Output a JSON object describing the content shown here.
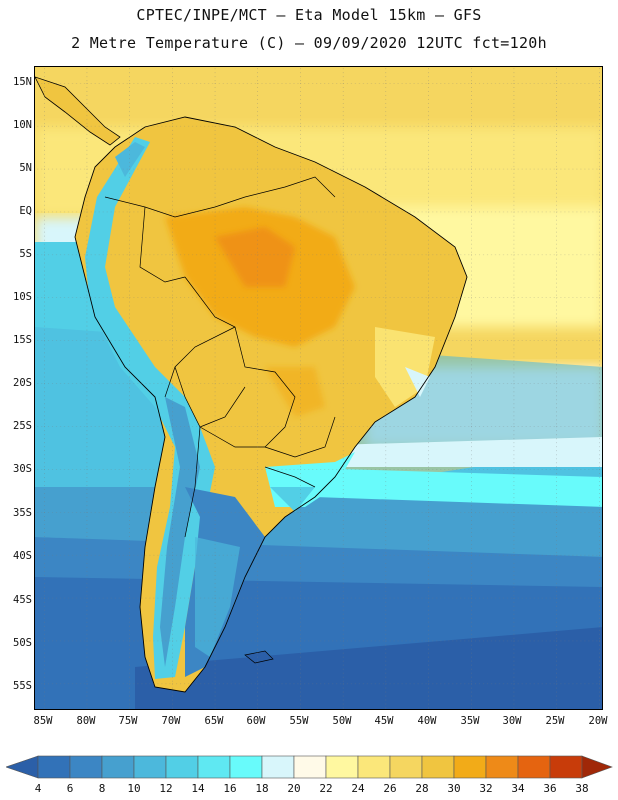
{
  "header": {
    "line1": "CPTEC/INPE/MCT –  Eta Model 15km – GFS",
    "line2": "2 Metre Temperature (C) – 09/09/2020 12UTC fct=120h"
  },
  "map": {
    "lat_labels": [
      "15N",
      "10N",
      "5N",
      "EQ",
      "5S",
      "10S",
      "15S",
      "20S",
      "25S",
      "30S",
      "35S",
      "40S",
      "45S",
      "50S",
      "55S"
    ],
    "lon_labels": [
      "85W",
      "80W",
      "75W",
      "70W",
      "65W",
      "60W",
      "55W",
      "50W",
      "45W",
      "40W",
      "35W",
      "30W",
      "25W",
      "20W"
    ]
  },
  "legend": {
    "values": [
      "4",
      "6",
      "8",
      "10",
      "12",
      "14",
      "16",
      "18",
      "20",
      "22",
      "24",
      "26",
      "28",
      "30",
      "32",
      "34",
      "36",
      "38"
    ],
    "colors": [
      "#2b5fa8",
      "#3272b8",
      "#3c86c4",
      "#46a0cf",
      "#4cb8dc",
      "#52cfe6",
      "#5fe8f2",
      "#68fbfb",
      "#d8f6fb",
      "#fffae8",
      "#fff8a0",
      "#fbe77a",
      "#f5d660",
      "#f0c540",
      "#f2ab18",
      "#ee8a18",
      "#e56410",
      "#c83c0a",
      "#a02808"
    ]
  }
}
